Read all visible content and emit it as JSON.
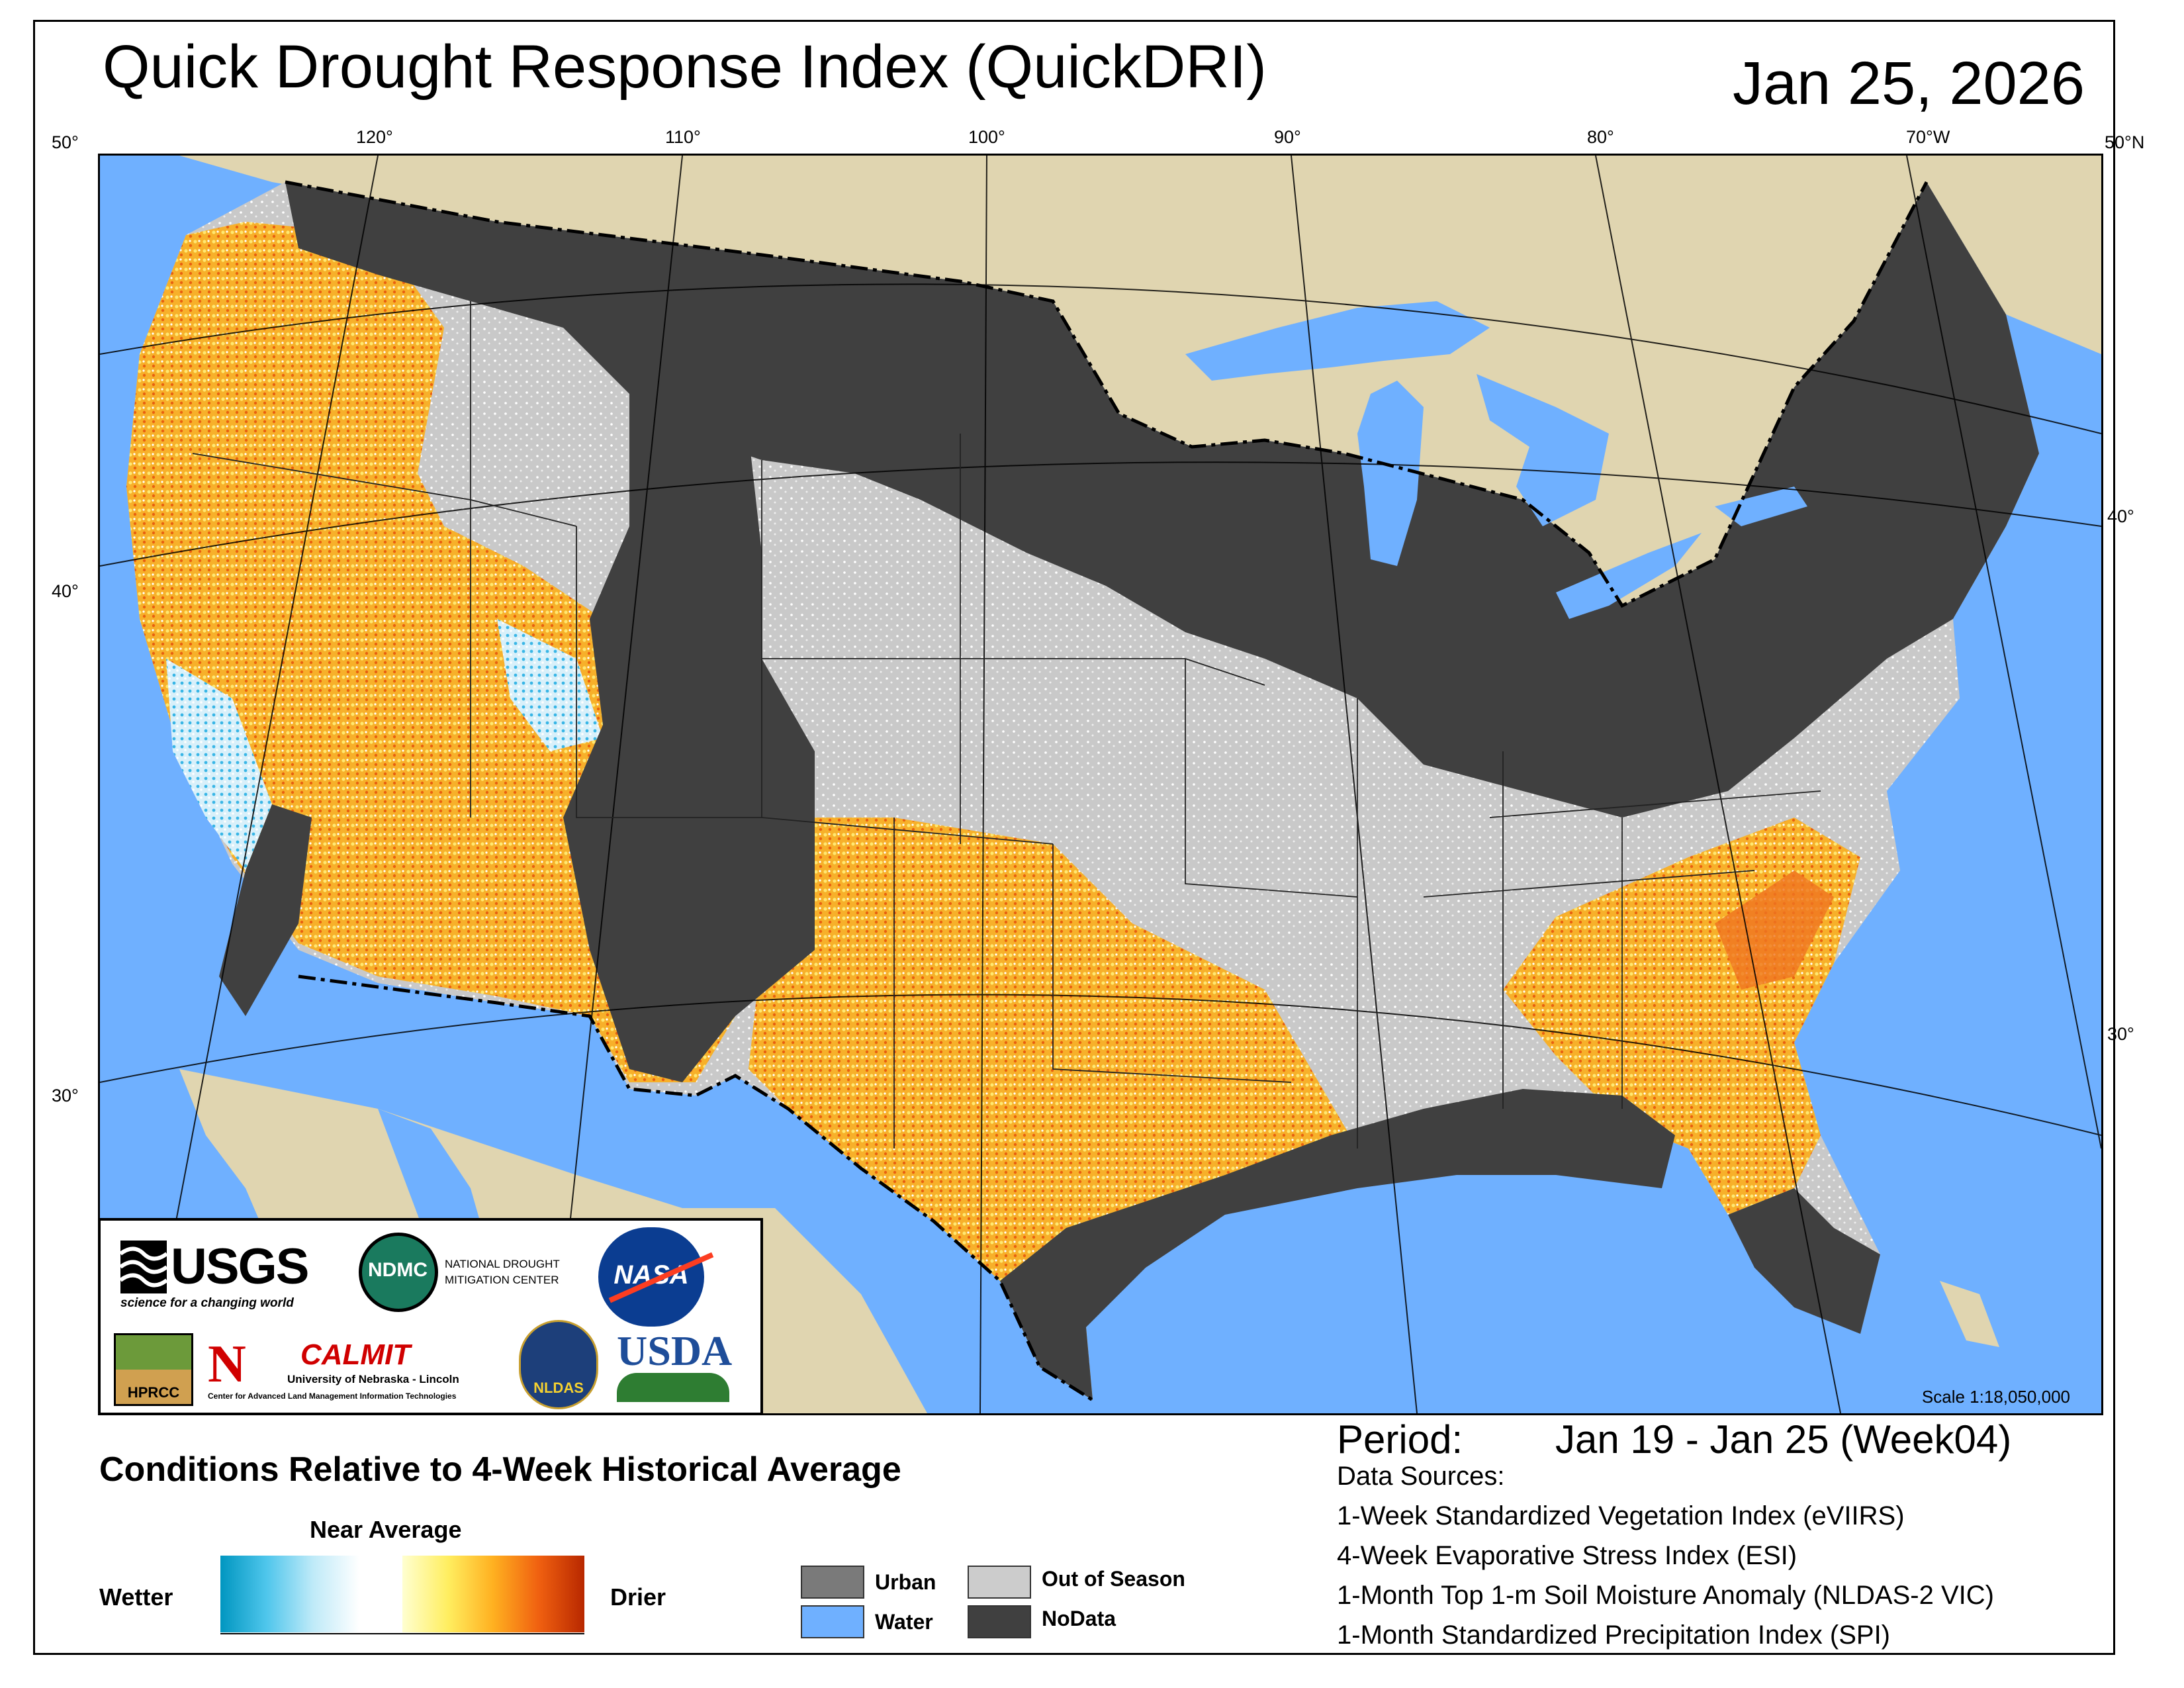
{
  "header": {
    "title": "Quick Drought Response Index (QuickDRI)",
    "date": "Jan 25, 2026"
  },
  "graticule": {
    "top_longitudes": [
      "50°",
      "120°",
      "110°",
      "100°",
      "90°",
      "80°",
      "70°W",
      "50°N"
    ],
    "left_latitudes": [
      "40°",
      "30°"
    ],
    "right_latitudes": [
      "40°",
      "30°"
    ]
  },
  "logos": {
    "usgs_name": "USGS",
    "usgs_tagline": "science for a changing world",
    "ndmc_name": "NDMC",
    "ndmc_text_line1": "NATIONAL DROUGHT",
    "ndmc_text_line2": "MITIGATION CENTER",
    "nasa_name": "NASA",
    "hprcc_name": "HPRCC",
    "calmit_name": "CALMIT",
    "calmit_university": "University of Nebraska - Lincoln",
    "calmit_center": "Center for Advanced Land Management Information Technologies",
    "nldas_name": "NLDAS",
    "usda_name": "USDA"
  },
  "map": {
    "scale": "Scale 1:18,050,000",
    "colors": {
      "water": "#6fb0ff",
      "land_outside": "#e0d5b0",
      "nodata": "#404040",
      "out_of_season": "#c8c8c8",
      "urban": "#7a7a7a",
      "dry": "#f5a623",
      "very_dry": "#e85a10",
      "wet": "#4fc6ec",
      "near_average_dry": "#ffef80"
    }
  },
  "legend": {
    "title": "Conditions Relative to 4-Week Historical Average",
    "near_average": "Near Average",
    "wetter": "Wetter",
    "drier": "Drier",
    "categories": [
      {
        "label": "Urban",
        "color": "#7a7a7a"
      },
      {
        "label": "Water",
        "color": "#6fb0ff"
      },
      {
        "label": "Out of Season",
        "color": "#cccccc"
      },
      {
        "label": "NoData",
        "color": "#404040"
      }
    ]
  },
  "period": {
    "label": "Period:",
    "value": "Jan 19 - Jan 25 (Week04)"
  },
  "data_sources": {
    "title": "Data Sources:",
    "items": [
      "1-Week Standardized Vegetation Index (eVIIRS)",
      "4-Week Evaporative Stress Index (ESI)",
      "1-Month Top 1-m Soil Moisture Anomaly (NLDAS-2 VIC)",
      "1-Month Standardized Precipitation Index (SPI)"
    ]
  }
}
